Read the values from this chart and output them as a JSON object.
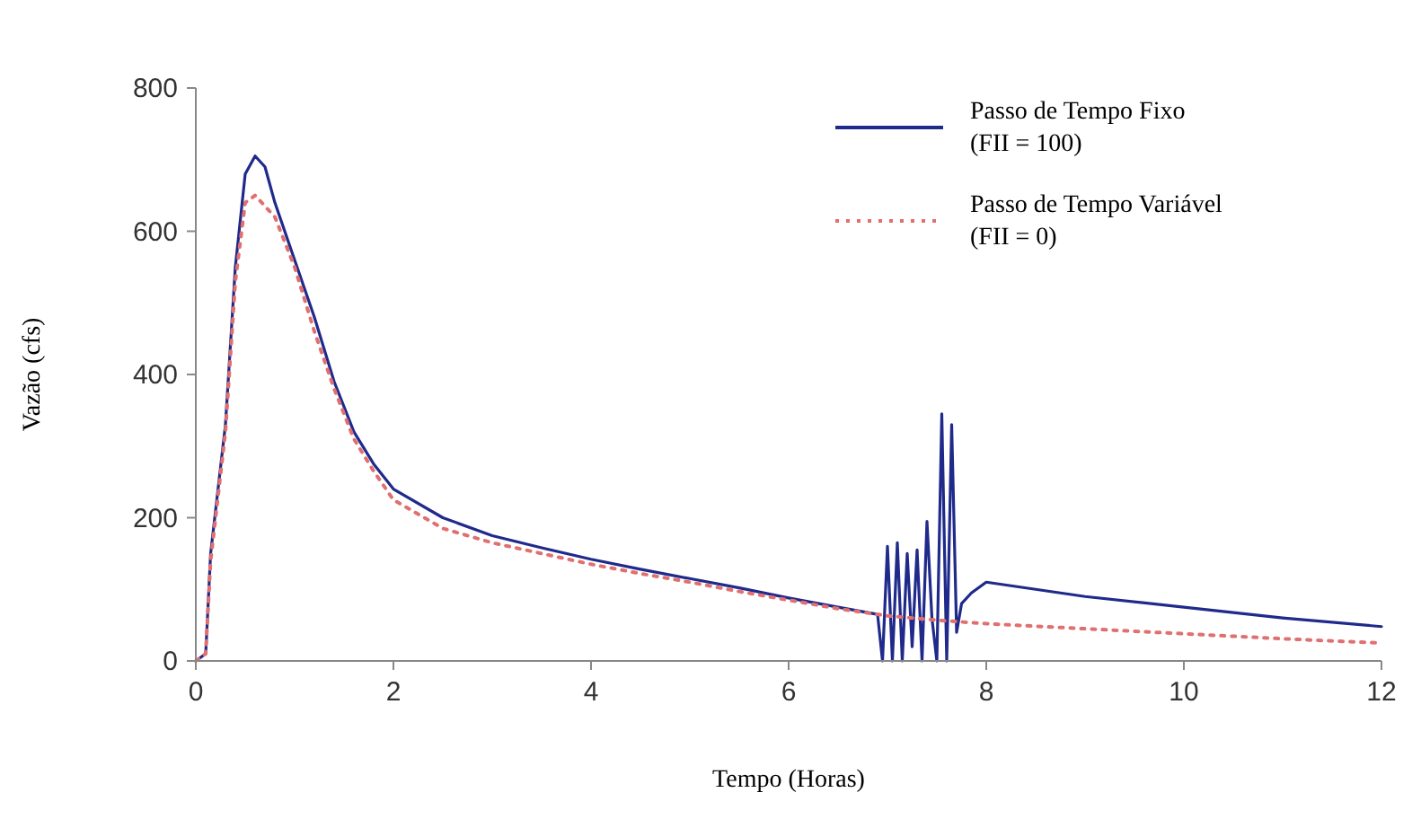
{
  "chart_data": {
    "type": "line",
    "xlabel": "Tempo (Horas)",
    "ylabel": "Vazão (cfs)",
    "xlim": [
      0,
      12
    ],
    "xticks": [
      0,
      2,
      4,
      6,
      8,
      10,
      12
    ],
    "ylim": [
      0,
      800
    ],
    "yticks": [
      0,
      200,
      400,
      600,
      800
    ],
    "grid": false,
    "legend": "top right",
    "marker": "none",
    "series": [
      {
        "name": "Passo de Tempo Fixo\n(FII = 100)",
        "color": "#1f2a8a",
        "line_style": "solid",
        "x": [
          0,
          0.1,
          0.15,
          0.3,
          0.4,
          0.5,
          0.6,
          0.7,
          0.8,
          1.0,
          1.2,
          1.4,
          1.6,
          1.8,
          2,
          2.5,
          3,
          3.5,
          4,
          4.5,
          5,
          5.5,
          6,
          6.5,
          6.9,
          6.95,
          7.0,
          7.05,
          7.1,
          7.15,
          7.2,
          7.25,
          7.3,
          7.35,
          7.4,
          7.45,
          7.5,
          7.55,
          7.6,
          7.65,
          7.7,
          7.75,
          7.85,
          8.0,
          8.5,
          9,
          10,
          11,
          12
        ],
        "values": [
          0,
          10,
          150,
          330,
          550,
          680,
          705,
          690,
          640,
          560,
          480,
          390,
          320,
          275,
          240,
          200,
          175,
          158,
          142,
          128,
          115,
          102,
          88,
          75,
          65,
          0,
          160,
          0,
          165,
          0,
          150,
          20,
          155,
          0,
          195,
          60,
          0,
          345,
          0,
          330,
          40,
          80,
          95,
          110,
          100,
          90,
          75,
          60,
          48
        ]
      },
      {
        "name": "Passo de Tempo Variável\n(FII = 0)",
        "color": "#e07070",
        "line_style": "dotted",
        "x": [
          0,
          0.1,
          0.15,
          0.3,
          0.4,
          0.5,
          0.6,
          0.8,
          1.0,
          1.2,
          1.4,
          1.6,
          1.8,
          2,
          2.5,
          3,
          3.5,
          4,
          4.5,
          5,
          5.5,
          6,
          6.5,
          7,
          7.5,
          8,
          9,
          10,
          11,
          12
        ],
        "values": [
          0,
          10,
          140,
          320,
          530,
          640,
          650,
          620,
          550,
          460,
          380,
          310,
          265,
          225,
          185,
          165,
          150,
          135,
          122,
          110,
          97,
          85,
          73,
          63,
          57,
          52,
          45,
          38,
          31,
          25
        ]
      }
    ]
  }
}
